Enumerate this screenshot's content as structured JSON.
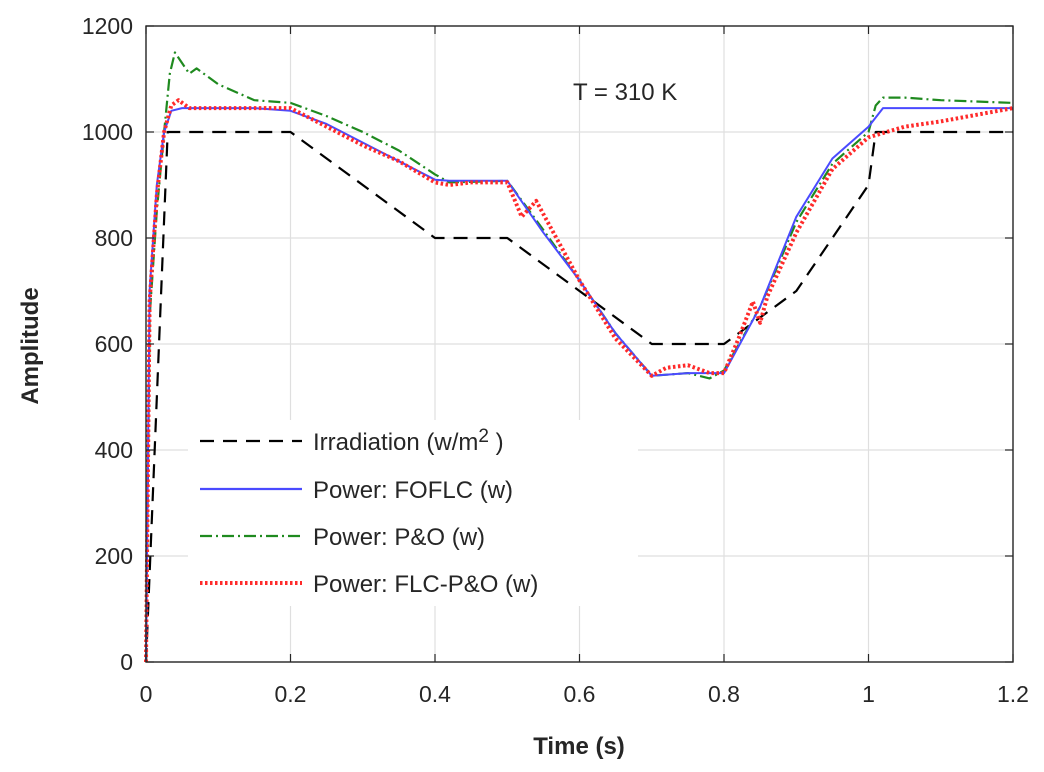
{
  "chart_data": {
    "type": "line",
    "title": "",
    "xlabel": "Time (s)",
    "ylabel": "Amplitude",
    "xlim": [
      0,
      1.2
    ],
    "ylim": [
      0,
      1200
    ],
    "xticks": [
      0,
      0.2,
      0.4,
      0.6,
      0.8,
      1,
      1.2
    ],
    "xtick_labels": [
      "0",
      "0.2",
      "0.4",
      "0.6",
      "0.8",
      "1",
      "1.2"
    ],
    "yticks": [
      0,
      200,
      400,
      600,
      800,
      1000,
      1200
    ],
    "ytick_labels": [
      "0",
      "200",
      "400",
      "600",
      "800",
      "1000",
      "1200"
    ],
    "grid": true,
    "annotation": "T = 310 K",
    "legend_location": "lower-left",
    "series": [
      {
        "name": "Irradiation (w/m",
        "name_sup": "2",
        "name_suffix": " )",
        "color": "#000000",
        "style": "dashed",
        "x": [
          0,
          0.03,
          0.2,
          0.4,
          0.5,
          0.7,
          0.8,
          0.9,
          1.0,
          1.01,
          1.2
        ],
        "y": [
          0,
          1000,
          1000,
          800,
          800,
          600,
          600,
          700,
          900,
          1000,
          1000
        ]
      },
      {
        "name": "Power: FOFLC (w)",
        "color": "#4a4aff",
        "style": "solid",
        "x": [
          0,
          0.005,
          0.015,
          0.025,
          0.035,
          0.05,
          0.1,
          0.15,
          0.2,
          0.25,
          0.3,
          0.35,
          0.4,
          0.42,
          0.5,
          0.55,
          0.6,
          0.65,
          0.7,
          0.75,
          0.8,
          0.85,
          0.9,
          0.95,
          1.0,
          1.02,
          1.2
        ],
        "y": [
          0,
          700,
          900,
          1000,
          1040,
          1045,
          1045,
          1045,
          1040,
          1015,
          980,
          945,
          910,
          908,
          908,
          810,
          720,
          620,
          540,
          545,
          545,
          670,
          840,
          950,
          1010,
          1045,
          1045
        ]
      },
      {
        "name": "Power: P&O (w)",
        "color": "#1f8a1f",
        "style": "dashdot",
        "x": [
          0,
          0.005,
          0.015,
          0.025,
          0.033,
          0.04,
          0.05,
          0.06,
          0.07,
          0.08,
          0.1,
          0.15,
          0.2,
          0.25,
          0.3,
          0.35,
          0.4,
          0.42,
          0.5,
          0.55,
          0.6,
          0.65,
          0.7,
          0.75,
          0.78,
          0.8,
          0.85,
          0.9,
          0.95,
          1.0,
          1.01,
          1.02,
          1.05,
          1.1,
          1.2
        ],
        "y": [
          0,
          650,
          850,
          1000,
          1110,
          1150,
          1130,
          1110,
          1120,
          1110,
          1090,
          1060,
          1055,
          1030,
          1000,
          965,
          920,
          905,
          908,
          815,
          720,
          620,
          540,
          545,
          535,
          550,
          670,
          830,
          940,
          1000,
          1050,
          1065,
          1065,
          1060,
          1055
        ]
      },
      {
        "name": "Power: FLC-P&O (w)",
        "color": "#ff2a2a",
        "style": "dotted",
        "x": [
          0,
          0.005,
          0.015,
          0.025,
          0.035,
          0.045,
          0.06,
          0.1,
          0.15,
          0.2,
          0.25,
          0.3,
          0.35,
          0.4,
          0.42,
          0.45,
          0.5,
          0.52,
          0.54,
          0.56,
          0.6,
          0.65,
          0.7,
          0.72,
          0.75,
          0.78,
          0.8,
          0.82,
          0.84,
          0.85,
          0.86,
          0.9,
          0.95,
          1.0,
          1.05,
          1.1,
          1.2
        ],
        "y": [
          0,
          680,
          880,
          1000,
          1050,
          1060,
          1045,
          1045,
          1045,
          1045,
          1010,
          975,
          945,
          905,
          900,
          905,
          905,
          840,
          870,
          820,
          720,
          610,
          540,
          555,
          560,
          545,
          545,
          610,
          680,
          640,
          690,
          810,
          930,
          990,
          1010,
          1020,
          1045
        ]
      }
    ]
  }
}
